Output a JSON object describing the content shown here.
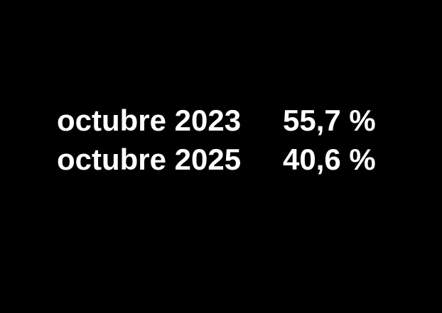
{
  "colors": {
    "background": "#000000",
    "text": "#ffffff"
  },
  "stats": {
    "rows": [
      {
        "label": "octubre 2023",
        "value": "55,7 %"
      },
      {
        "label": "octubre 2025",
        "value": "40,6 %"
      }
    ]
  },
  "chart_data": {
    "type": "table",
    "categories": [
      "octubre 2023",
      "octubre 2025"
    ],
    "values": [
      55.7,
      40.6
    ],
    "value_labels": [
      "55,7 %",
      "40,6 %"
    ],
    "unit": "%",
    "title": "",
    "layout_hints": {
      "background": "black",
      "text_color": "white",
      "two_column_stat_list": true
    }
  }
}
